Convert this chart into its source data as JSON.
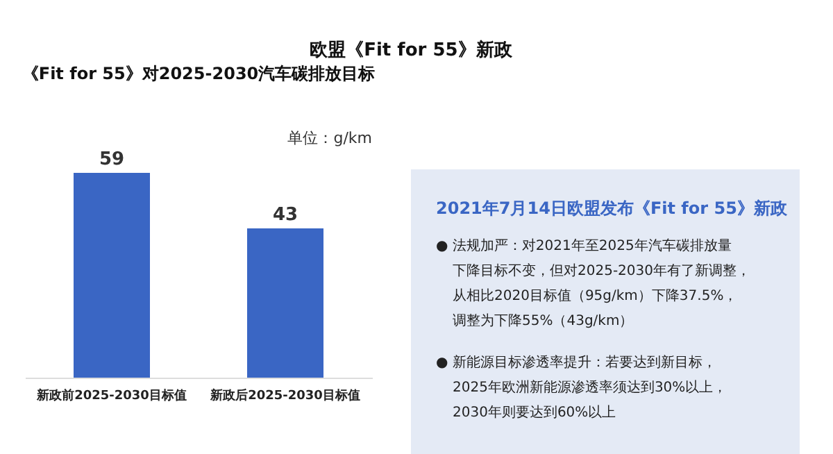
{
  "chart_data": [
    {
      "type": "bar",
      "title": "欧盟《Fit for 55》新政",
      "subtitle": "《Fit for 55》对2025-2030汽车碳排放目标",
      "ylabel": "单位：g/km",
      "categories": [
        "新政前2025-2030目标值",
        "新政后2025-2030目标值"
      ],
      "values": [
        59,
        43
      ],
      "color": "#3a66c4",
      "data_labels": true
    },
    {
      "type": "other",
      "title": "2021年7月14日欧盟发布《Fit for 55》新政",
      "annotations": [
        "● 法规加严：对2021年至2025年汽车碳排放量",
        "下降目标不变，但对2025-2030年有了新调整，",
        "从相比2020目标值（95g/km）下降37.5%，",
        "调整为下降55%（43g/km）",
        "● 新能源目标渗透率提升：若要达到新目标，",
        "2025年欧洲新能源渗透率须达到30%以上，",
        "2030年则要达到60%以上"
      ]
    }
  ]
}
